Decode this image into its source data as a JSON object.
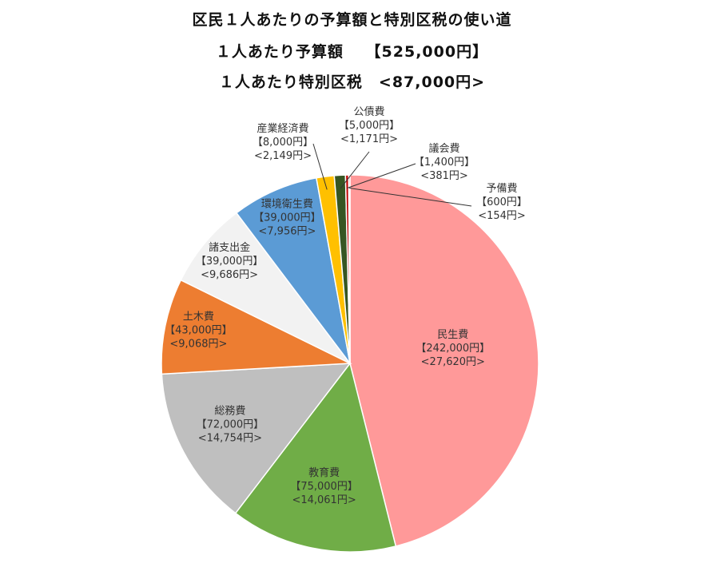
{
  "titles": {
    "line1": "区民１人あたりの予算額と特別区税の使い道",
    "line2": "１人あたり予算額　 【525,000円】",
    "line3": "１人あたり特別区税　<87,000円>"
  },
  "chart_data": {
    "type": "pie",
    "start_angle_deg": 0,
    "direction": "clockwise",
    "slices": [
      {
        "name": "民生費",
        "budget": 242000,
        "tax": 27620,
        "budget_label": "【242,000円】",
        "tax_label": "<27,620円>",
        "color": "#FF9999"
      },
      {
        "name": "教育費",
        "budget": 75000,
        "tax": 14061,
        "budget_label": "【75,000円】",
        "tax_label": "<14,061円>",
        "color": "#70AD47"
      },
      {
        "name": "総務費",
        "budget": 72000,
        "tax": 14754,
        "budget_label": "【72,000円】",
        "tax_label": "<14,754円>",
        "color": "#BFBFBF"
      },
      {
        "name": "土木費",
        "budget": 43000,
        "tax": 9068,
        "budget_label": "【43,000円】",
        "tax_label": "<9,068円>",
        "color": "#ED7D31"
      },
      {
        "name": "諸支出金",
        "budget": 39000,
        "tax": 9686,
        "budget_label": "【39,000円】",
        "tax_label": "<9,686円>",
        "color": "#F2F2F2"
      },
      {
        "name": "環境衛生費",
        "budget": 39000,
        "tax": 7956,
        "budget_label": "【39,000円】",
        "tax_label": "<7,956円>",
        "color": "#5B9BD5"
      },
      {
        "name": "産業経済費",
        "budget": 8000,
        "tax": 2149,
        "budget_label": "【8,000円】",
        "tax_label": "<2,149円>",
        "color": "#FFC000"
      },
      {
        "name": "公債費",
        "budget": 5000,
        "tax": 1171,
        "budget_label": "【5,000円】",
        "tax_label": "<1,171円>",
        "color": "#375623"
      },
      {
        "name": "議会費",
        "budget": 1400,
        "tax": 381,
        "budget_label": "【1,400円】",
        "tax_label": "<381円>",
        "color": "#C00000"
      },
      {
        "name": "予備費",
        "budget": 600,
        "tax": 154,
        "budget_label": "【600円】",
        "tax_label": "<154円>",
        "color": "#8B0000"
      }
    ]
  }
}
